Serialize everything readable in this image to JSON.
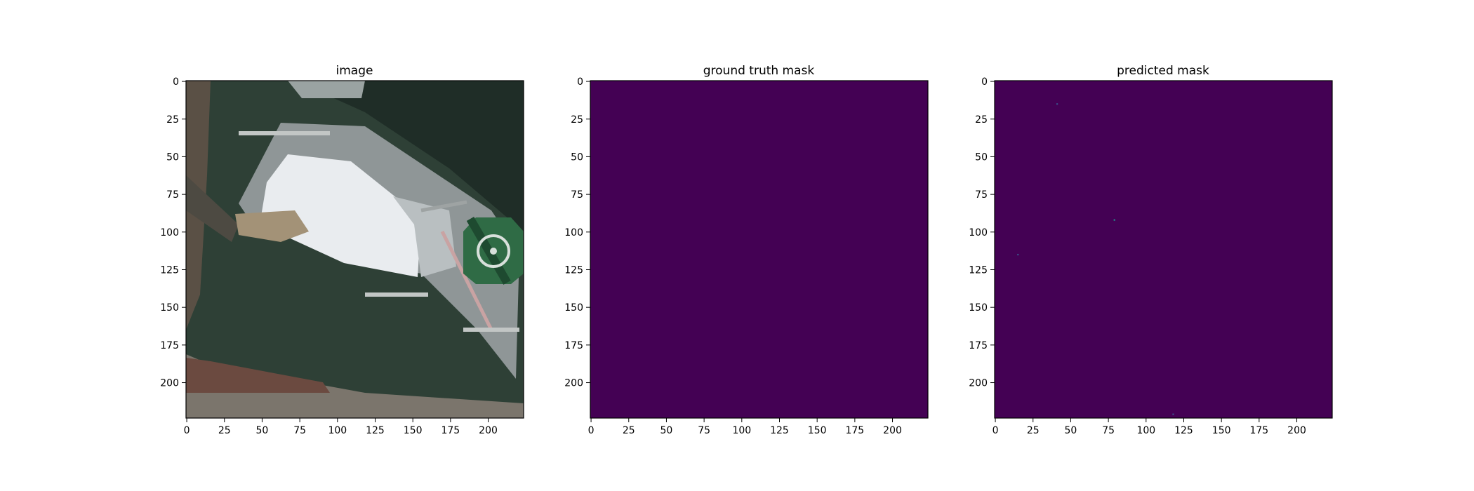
{
  "panels": [
    {
      "title": "image",
      "kind": "satellite-photo",
      "x_ticks": [
        "0",
        "25",
        "50",
        "75",
        "100",
        "125",
        "150",
        "175",
        "200"
      ],
      "y_ticks": [
        "0",
        "25",
        "50",
        "75",
        "100",
        "125",
        "150",
        "175",
        "200"
      ]
    },
    {
      "title": "ground truth mask",
      "kind": "mask",
      "x_ticks": [
        "0",
        "25",
        "50",
        "75",
        "100",
        "125",
        "150",
        "175",
        "200"
      ],
      "y_ticks": [
        "0",
        "25",
        "50",
        "75",
        "100",
        "125",
        "150",
        "175",
        "200"
      ]
    },
    {
      "title": "predicted mask",
      "kind": "mask",
      "x_ticks": [
        "0",
        "25",
        "50",
        "75",
        "100",
        "125",
        "150",
        "175",
        "200"
      ],
      "y_ticks": [
        "0",
        "25",
        "50",
        "75",
        "100",
        "125",
        "150",
        "175",
        "200"
      ]
    }
  ],
  "image_extent": [
    0,
    224
  ],
  "tick_values": [
    0,
    25,
    50,
    75,
    100,
    125,
    150,
    175,
    200
  ],
  "predicted_specks": [
    {
      "x": 41,
      "y": 15,
      "color": "#3b528b"
    },
    {
      "x": 79,
      "y": 92,
      "color": "#21918c"
    },
    {
      "x": 15,
      "y": 115,
      "color": "#3b528b"
    },
    {
      "x": 118,
      "y": 221,
      "color": "#3b528b"
    }
  ],
  "colors": {
    "mask_background": "#440154",
    "water": "#2e4036",
    "helipad": "#2f6b45",
    "deck": "#e9ecef"
  }
}
